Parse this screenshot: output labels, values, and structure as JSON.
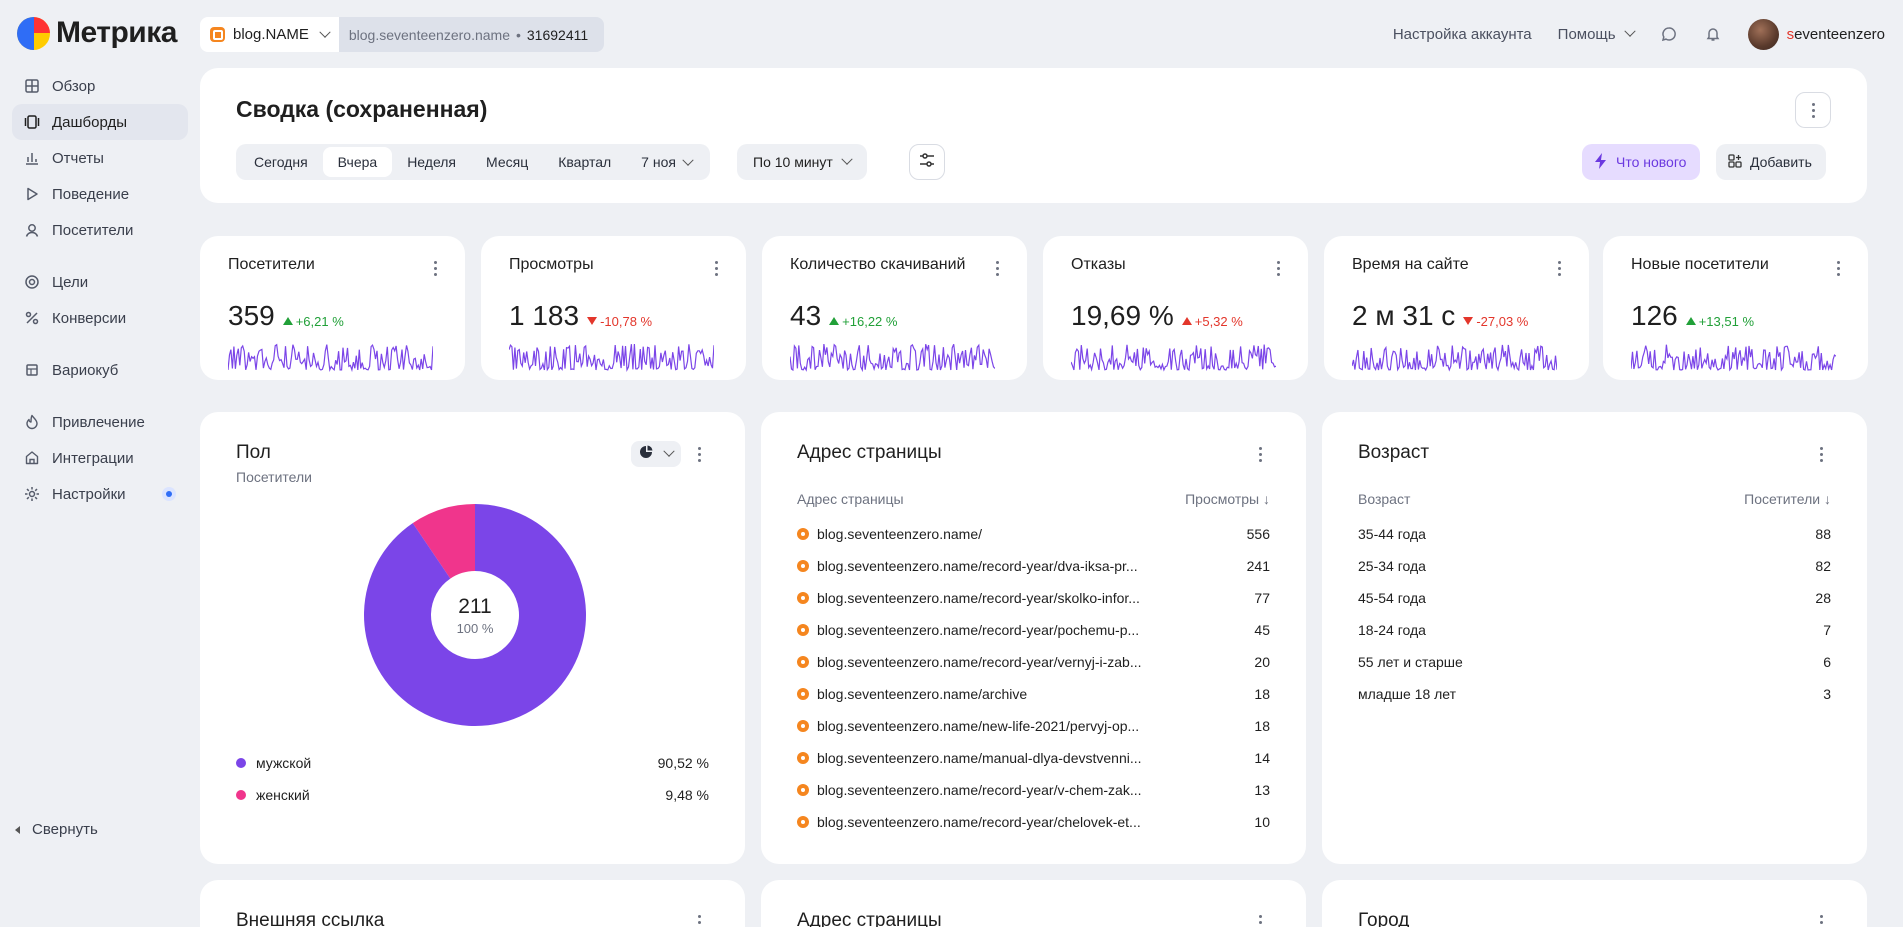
{
  "app": {
    "logo_text": "Метрика",
    "site_name": "blog.NAME",
    "site_domain": "blog.seventeenzero.name",
    "separator": "•",
    "counter_id": "31692411"
  },
  "top_nav": {
    "account_settings": "Настройка аккаунта",
    "help": "Помощь",
    "username_first": "s",
    "username_rest": "eventeenzero"
  },
  "sidebar": {
    "items": [
      {
        "label": "Обзор",
        "icon": "grid-icon"
      },
      {
        "label": "Дашборды",
        "icon": "dashboard-icon",
        "active": true
      },
      {
        "label": "Отчеты",
        "icon": "chart-icon"
      },
      {
        "label": "Поведение",
        "icon": "play-icon"
      },
      {
        "label": "Посетители",
        "icon": "user-icon"
      },
      {
        "label": "Цели",
        "icon": "target-icon"
      },
      {
        "label": "Конверсии",
        "icon": "percent-icon"
      },
      {
        "label": "Вариокуб",
        "icon": "cube-icon"
      },
      {
        "label": "Привлечение",
        "icon": "flame-icon"
      },
      {
        "label": "Интеграции",
        "icon": "puzzle-icon"
      },
      {
        "label": "Настройки",
        "icon": "gear-icon"
      }
    ],
    "collapse_label": "Свернуть"
  },
  "header": {
    "title": "Сводка (сохраненная)",
    "periods": [
      "Сегодня",
      "Вчера",
      "Неделя",
      "Месяц",
      "Квартал"
    ],
    "active_period": "Вчера",
    "date_label": "7 ноя",
    "granularity": "По 10 минут",
    "whats_new": "Что нового",
    "add": "Добавить"
  },
  "metrics": [
    {
      "title": "Посетители",
      "value": "359",
      "delta": "+6,21 %",
      "direction": "up"
    },
    {
      "title": "Просмотры",
      "value": "1 183",
      "delta": "-10,78 %",
      "direction": "down"
    },
    {
      "title": "Количество скачиваний",
      "value": "43",
      "delta": "+16,22 %",
      "direction": "up"
    },
    {
      "title": "Отказы",
      "value": "19,69 %",
      "delta": "+5,32 %",
      "direction": "up-bad"
    },
    {
      "title": "Время на сайте",
      "value": "2 м 31 с",
      "delta": "-27,03 %",
      "direction": "down"
    },
    {
      "title": "Новые посетители",
      "value": "126",
      "delta": "+13,51 %",
      "direction": "up"
    }
  ],
  "gender": {
    "title": "Пол",
    "subtitle": "Посетители",
    "total": "211",
    "total_percent": "100 %",
    "slices": [
      {
        "label": "мужской",
        "value": "90,52 %",
        "fraction": 0.9052,
        "color": "#7b45e8"
      },
      {
        "label": "женский",
        "value": "9,48 %",
        "fraction": 0.0948,
        "color": "#f0358c"
      }
    ]
  },
  "pages": {
    "title": "Адрес страницы",
    "col1": "Адрес страницы",
    "col2": "Просмотры ↓",
    "rows": [
      {
        "url": "blog.seventeenzero.name/",
        "value": "556"
      },
      {
        "url": "blog.seventeenzero.name/record-year/dva-iksa-pr...",
        "value": "241"
      },
      {
        "url": "blog.seventeenzero.name/record-year/skolko-infor...",
        "value": "77"
      },
      {
        "url": "blog.seventeenzero.name/record-year/pochemu-p...",
        "value": "45"
      },
      {
        "url": "blog.seventeenzero.name/record-year/vernyj-i-zab...",
        "value": "20"
      },
      {
        "url": "blog.seventeenzero.name/archive",
        "value": "18"
      },
      {
        "url": "blog.seventeenzero.name/new-life-2021/pervyj-op...",
        "value": "18"
      },
      {
        "url": "blog.seventeenzero.name/manual-dlya-devstvenni...",
        "value": "14"
      },
      {
        "url": "blog.seventeenzero.name/record-year/v-chem-zak...",
        "value": "13"
      },
      {
        "url": "blog.seventeenzero.name/record-year/chelovek-et...",
        "value": "10"
      }
    ]
  },
  "age": {
    "title": "Возраст",
    "col1": "Возраст",
    "col2": "Посетители ↓",
    "rows": [
      {
        "label": "35-44 года",
        "value": "88"
      },
      {
        "label": "25-34 года",
        "value": "82"
      },
      {
        "label": "45-54 года",
        "value": "28"
      },
      {
        "label": "18-24 года",
        "value": "7"
      },
      {
        "label": "55 лет и старше",
        "value": "6"
      },
      {
        "label": "младше 18 лет",
        "value": "3"
      }
    ]
  },
  "bottom_cards": [
    "Внешняя ссылка",
    "Адрес страницы",
    "Город"
  ],
  "colors": {
    "accent": "#7b45e8",
    "positive": "#21a038",
    "negative": "#e3362b",
    "female": "#f0358c"
  }
}
